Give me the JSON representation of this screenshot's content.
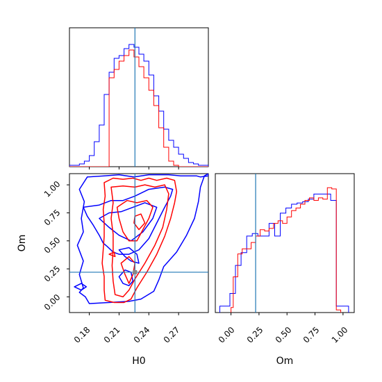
{
  "chart_data": {
    "type": "corner",
    "parameters": [
      "H0",
      "Om"
    ],
    "truth": {
      "H0": 0.226,
      "Om": 0.22
    },
    "colors": {
      "model_a": "#0000ff",
      "model_b": "#ff0000",
      "truth": "#1f77b4"
    },
    "panels": {
      "h0_hist": {
        "type": "histogram",
        "xlim": [
          0.16,
          0.3
        ],
        "bins": [
          0.16,
          0.165,
          0.17,
          0.175,
          0.18,
          0.185,
          0.19,
          0.195,
          0.2,
          0.205,
          0.21,
          0.215,
          0.22,
          0.225,
          0.23,
          0.235,
          0.24,
          0.245,
          0.25,
          0.255,
          0.26,
          0.265,
          0.27,
          0.275,
          0.28,
          0.285,
          0.29,
          0.295,
          0.3
        ],
        "series": [
          {
            "color": "#0000ff",
            "counts": [
              1,
              1,
              2,
              4,
              8,
              18,
              30,
              52,
              68,
              78,
              80,
              85,
              88,
              86,
              81,
              76,
              66,
              51,
              40,
              27,
              19,
              14,
              9,
              6,
              3,
              2,
              1,
              1
            ]
          },
          {
            "color": "#ff0000",
            "counts": [
              0,
              0,
              0,
              0,
              0,
              0,
              0,
              0,
              64,
              70,
              76,
              80,
              84,
              79,
              72,
              64,
              55,
              44,
              28,
              14,
              4,
              1,
              0,
              0,
              0,
              0,
              0,
              0
            ]
          }
        ]
      },
      "om_hist": {
        "type": "histogram",
        "xlim": [
          -0.14,
          1.1
        ],
        "xticks": [
          "0.00",
          "0.25",
          "0.50",
          "0.75",
          "1.00"
        ],
        "xlabel": "Om",
        "series": [
          {
            "color": "#0000ff",
            "bins": [
              -0.1,
              -0.06,
              -0.01,
              0.04,
              0.09,
              0.14,
              0.19,
              0.24,
              0.29,
              0.34,
              0.39,
              0.44,
              0.49,
              0.54,
              0.59,
              0.64,
              0.69,
              0.74,
              0.79,
              0.84,
              0.89,
              0.94,
              0.99,
              1.05
            ],
            "counts": [
              5,
              5,
              15,
              37,
              47,
              60,
              62,
              60,
              60,
              70,
              60,
              78,
              82,
              85,
              86,
              87,
              89,
              93,
              93,
              93,
              88,
              5,
              5
            ]
          },
          {
            "color": "#ff0000",
            "bins": [
              0.0,
              0.02,
              0.06,
              0.1,
              0.14,
              0.18,
              0.22,
              0.26,
              0.3,
              0.34,
              0.38,
              0.42,
              0.46,
              0.5,
              0.54,
              0.58,
              0.62,
              0.66,
              0.7,
              0.74,
              0.78,
              0.82,
              0.86,
              0.9,
              0.94,
              0.98
            ],
            "counts": [
              4,
              28,
              46,
              50,
              50,
              55,
              60,
              65,
              64,
              66,
              70,
              72,
              70,
              75,
              80,
              82,
              85,
              88,
              90,
              88,
              90,
              89,
              98,
              97,
              2
            ]
          }
        ]
      },
      "joint": {
        "type": "contour",
        "xlim": [
          0.16,
          0.3
        ],
        "ylim": [
          -0.14,
          1.1
        ],
        "xticks": [
          "0.18",
          "0.21",
          "0.24",
          "0.27"
        ],
        "yticks": [
          "0.00",
          "0.25",
          "0.50",
          "0.75",
          "1.00"
        ],
        "xlabel": "H0",
        "ylabel": "Om",
        "series": [
          {
            "color": "#0000ff",
            "levels": [
              [
                [
                  0.174,
                  0.08
                ],
                [
                  0.17,
                  0.04
                ],
                [
                  0.176,
                  0.0
                ],
                [
                  0.18,
                  -0.06
                ],
                [
                  0.2,
                  -0.05
                ],
                [
                  0.22,
                  -0.04
                ],
                [
                  0.232,
                  -0.02
                ],
                [
                  0.245,
                  0.05
                ],
                [
                  0.25,
                  0.15
                ],
                [
                  0.255,
                  0.27
                ],
                [
                  0.268,
                  0.4
                ],
                [
                  0.278,
                  0.55
                ],
                [
                  0.286,
                  0.7
                ],
                [
                  0.29,
                  0.85
                ],
                [
                  0.292,
                  0.98
                ],
                [
                  0.296,
                  1.08
                ],
                [
                  0.3,
                  1.1
                ],
                [
                  0.3,
                  1.08
                ],
                [
                  0.292,
                  1.07
                ],
                [
                  0.288,
                  1.08
                ],
                [
                  0.272,
                  1.08
                ],
                [
                  0.26,
                  1.09
                ],
                [
                  0.24,
                  1.09
                ],
                [
                  0.225,
                  1.07
                ],
                [
                  0.21,
                  1.09
                ],
                [
                  0.195,
                  1.08
                ],
                [
                  0.178,
                  1.07
                ],
                [
                  0.17,
                  0.96
                ],
                [
                  0.175,
                  0.85
                ],
                [
                  0.172,
                  0.7
                ],
                [
                  0.174,
                  0.58
                ],
                [
                  0.168,
                  0.46
                ],
                [
                  0.174,
                  0.32
                ],
                [
                  0.17,
                  0.2
                ]
              ],
              [
                [
                  0.174,
                  0.8
                ],
                [
                  0.178,
                  0.72
                ],
                [
                  0.184,
                  0.64
                ],
                [
                  0.19,
                  0.55
                ],
                [
                  0.194,
                  0.48
                ],
                [
                  0.198,
                  0.45
                ],
                [
                  0.204,
                  0.4
                ],
                [
                  0.21,
                  0.38
                ],
                [
                  0.22,
                  0.38
                ],
                [
                  0.23,
                  0.42
                ],
                [
                  0.24,
                  0.52
                ],
                [
                  0.248,
                  0.66
                ],
                [
                  0.256,
                  0.8
                ],
                [
                  0.262,
                  0.9
                ],
                [
                  0.264,
                  0.96
                ],
                [
                  0.256,
                  0.98
                ],
                [
                  0.24,
                  0.96
                ],
                [
                  0.226,
                  0.9
                ],
                [
                  0.214,
                  0.86
                ],
                [
                  0.202,
                  0.86
                ],
                [
                  0.19,
                  0.82
                ]
              ],
              [
                [
                  0.19,
                  0.7
                ],
                [
                  0.2,
                  0.62
                ],
                [
                  0.21,
                  0.55
                ],
                [
                  0.222,
                  0.5
                ],
                [
                  0.234,
                  0.58
                ],
                [
                  0.244,
                  0.7
                ],
                [
                  0.248,
                  0.8
                ],
                [
                  0.236,
                  0.84
                ],
                [
                  0.224,
                  0.8
                ],
                [
                  0.212,
                  0.76
                ],
                [
                  0.2,
                  0.75
                ]
              ],
              [
                [
                  0.21,
                  0.42
                ],
                [
                  0.216,
                  0.36
                ],
                [
                  0.222,
                  0.32
                ],
                [
                  0.23,
                  0.3
                ],
                [
                  0.228,
                  0.38
                ],
                [
                  0.22,
                  0.44
                ]
              ],
              [
                [
                  0.21,
                  0.18
                ],
                [
                  0.214,
                  0.12
                ],
                [
                  0.22,
                  0.1
                ],
                [
                  0.224,
                  0.14
                ],
                [
                  0.222,
                  0.22
                ],
                [
                  0.216,
                  0.24
                ]
              ],
              [
                [
                  0.165,
                  0.09
                ],
                [
                  0.172,
                  0.06
                ],
                [
                  0.177,
                  0.09
                ],
                [
                  0.172,
                  0.12
                ]
              ]
            ]
          },
          {
            "color": "#ff0000",
            "levels": [
              [
                [
                  0.195,
                  1.02
                ],
                [
                  0.196,
                  0.9
                ],
                [
                  0.194,
                  0.78
                ],
                [
                  0.195,
                  0.66
                ],
                [
                  0.195,
                  0.54
                ],
                [
                  0.194,
                  0.42
                ],
                [
                  0.193,
                  0.3
                ],
                [
                  0.195,
                  0.18
                ],
                [
                  0.195,
                  0.06
                ],
                [
                  0.196,
                  -0.03
                ],
                [
                  0.205,
                  -0.05
                ],
                [
                  0.215,
                  -0.05
                ],
                [
                  0.222,
                  -0.02
                ],
                [
                  0.228,
                  0.08
                ],
                [
                  0.238,
                  0.22
                ],
                [
                  0.248,
                  0.38
                ],
                [
                  0.256,
                  0.54
                ],
                [
                  0.262,
                  0.7
                ],
                [
                  0.266,
                  0.84
                ],
                [
                  0.268,
                  0.94
                ],
                [
                  0.266,
                  1.04
                ],
                [
                  0.258,
                  1.06
                ],
                [
                  0.248,
                  1.04
                ],
                [
                  0.24,
                  1.06
                ],
                [
                  0.232,
                  1.04
                ],
                [
                  0.224,
                  1.06
                ],
                [
                  0.214,
                  1.05
                ],
                [
                  0.204,
                  1.06
                ]
              ],
              [
                [
                  0.202,
                  0.98
                ],
                [
                  0.204,
                  0.84
                ],
                [
                  0.202,
                  0.7
                ],
                [
                  0.204,
                  0.56
                ],
                [
                  0.204,
                  0.42
                ],
                [
                  0.203,
                  0.28
                ],
                [
                  0.204,
                  0.14
                ],
                [
                  0.206,
                  0.02
                ],
                [
                  0.214,
                  0.0
                ],
                [
                  0.22,
                  0.06
                ],
                [
                  0.226,
                  0.16
                ],
                [
                  0.236,
                  0.3
                ],
                [
                  0.246,
                  0.46
                ],
                [
                  0.254,
                  0.62
                ],
                [
                  0.258,
                  0.78
                ],
                [
                  0.26,
                  0.92
                ],
                [
                  0.256,
                  1.0
                ],
                [
                  0.246,
                  0.98
                ],
                [
                  0.236,
                  1.0
                ],
                [
                  0.226,
                  0.98
                ],
                [
                  0.214,
                  0.99
                ]
              ],
              [
                [
                  0.208,
                  0.8
                ],
                [
                  0.21,
                  0.7
                ],
                [
                  0.214,
                  0.58
                ],
                [
                  0.22,
                  0.5
                ],
                [
                  0.228,
                  0.5
                ],
                [
                  0.234,
                  0.6
                ],
                [
                  0.24,
                  0.7
                ],
                [
                  0.244,
                  0.8
                ],
                [
                  0.238,
                  0.86
                ],
                [
                  0.228,
                  0.84
                ],
                [
                  0.218,
                  0.86
                ]
              ],
              [
                [
                  0.212,
                  0.3
                ],
                [
                  0.216,
                  0.2
                ],
                [
                  0.22,
                  0.12
                ],
                [
                  0.224,
                  0.2
                ],
                [
                  0.226,
                  0.3
                ],
                [
                  0.22,
                  0.36
                ]
              ],
              [
                [
                  0.225,
                  0.66
                ],
                [
                  0.23,
                  0.6
                ],
                [
                  0.236,
                  0.66
                ],
                [
                  0.232,
                  0.74
                ],
                [
                  0.226,
                  0.72
                ]
              ],
              [
                [
                  0.2,
                  0.38
                ],
                [
                  0.206,
                  0.36
                ],
                [
                  0.205,
                  0.4
                ]
              ]
            ]
          }
        ]
      }
    }
  }
}
